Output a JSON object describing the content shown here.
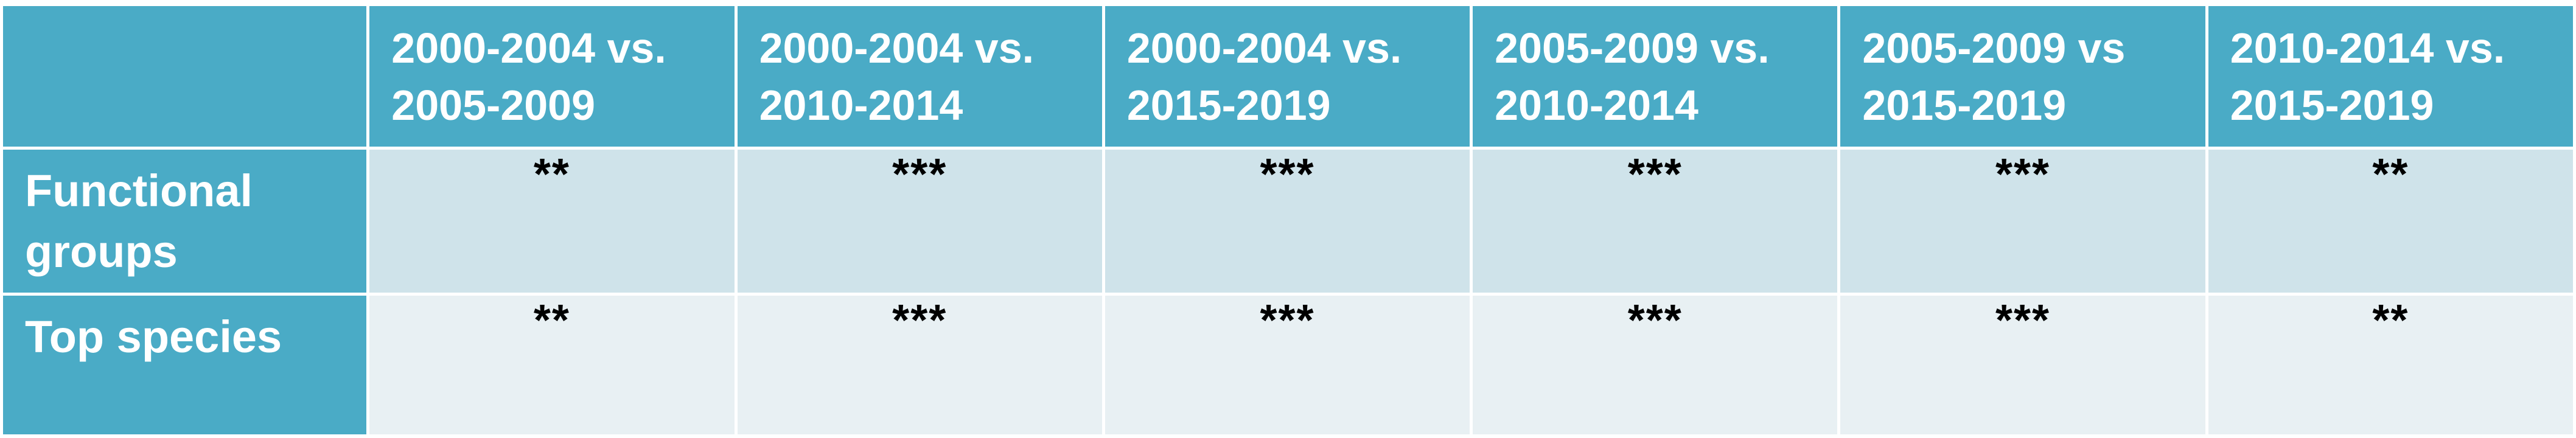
{
  "table": {
    "corner": "",
    "columns": [
      [
        "2000-2004 vs.",
        "2005-2009"
      ],
      [
        "2000-2004 vs.",
        "2010-2014"
      ],
      [
        "2000-2004 vs.",
        "2015-2019"
      ],
      [
        "2005-2009 vs.",
        "2010-2014"
      ],
      [
        "2005-2009 vs",
        "2015-2019"
      ],
      [
        "2010-2014 vs.",
        "2015-2019"
      ]
    ],
    "rows": [
      {
        "label": [
          "Functional",
          "groups"
        ],
        "cells": [
          "**",
          "***",
          "***",
          "***",
          "***",
          "**"
        ]
      },
      {
        "label": [
          "Top species"
        ],
        "cells": [
          "**",
          "***",
          "***",
          "***",
          "***",
          "**"
        ]
      }
    ]
  },
  "colors": {
    "header_bg": "#4aabc6",
    "row1_bg": "#cfe3ea",
    "row2_bg": "#e8f0f3",
    "header_text": "#ffffff",
    "cell_text": "#000000"
  }
}
